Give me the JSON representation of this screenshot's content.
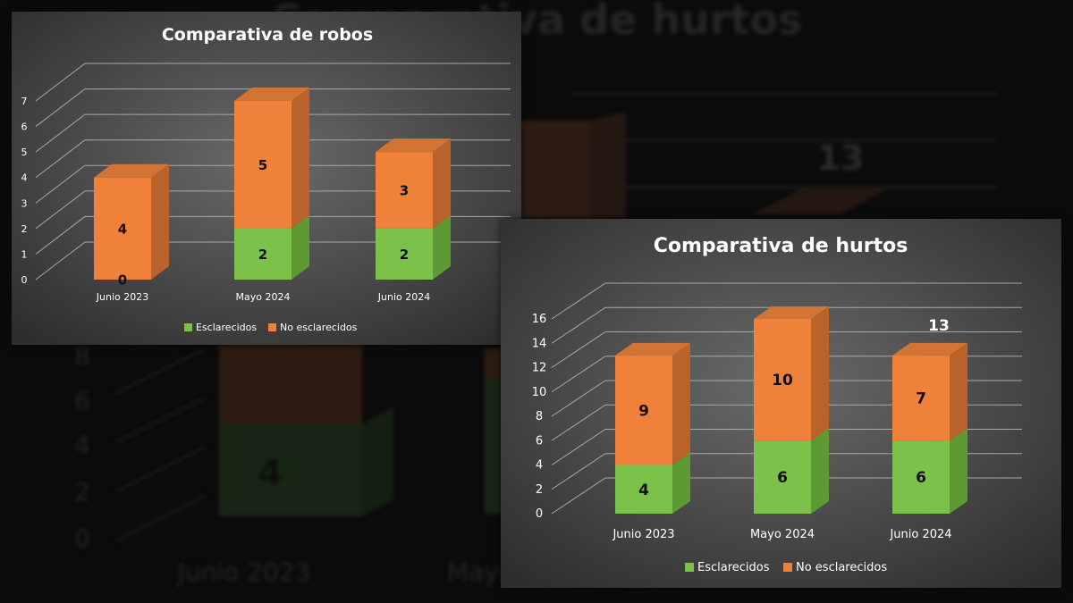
{
  "colors": {
    "esclarecidos_front": "#7CC24A",
    "esclarecidos_side": "#5E9A34",
    "no_esclarecidos_front": "#F0813A",
    "no_esclarecidos_side": "#B9622A",
    "no_esclarecidos_top": "#D27433",
    "panel_bg_center": "#6A6A6A",
    "panel_bg_edge": "#2E2E2E"
  },
  "background": {
    "title": "Comparativa de hurtos",
    "value_label": "13",
    "y_ticks": [
      "0",
      "2",
      "4",
      "6",
      "8"
    ],
    "category": "Junio 2023",
    "category_partial": "Mayo",
    "bar_label": "4"
  },
  "chart_data": [
    {
      "type": "bar",
      "stacked": true,
      "three_d": true,
      "title": "Comparativa de robos",
      "categories": [
        "Junio 2023",
        "Mayo 2024",
        "Junio 2024"
      ],
      "series": [
        {
          "name": "Esclarecidos",
          "values": [
            0,
            2,
            2
          ],
          "labels": [
            "0",
            "2",
            "2"
          ]
        },
        {
          "name": "No esclarecidos",
          "values": [
            4,
            5,
            3
          ],
          "labels": [
            "4",
            "5",
            "3"
          ]
        }
      ],
      "totals": [],
      "y_ticks": [
        "0",
        "1",
        "2",
        "3",
        "4",
        "5",
        "6",
        "7"
      ],
      "ylim": [
        0,
        7
      ],
      "grid": true,
      "legend_position": "bottom"
    },
    {
      "type": "bar",
      "stacked": true,
      "three_d": true,
      "title": "Comparativa de hurtos",
      "categories": [
        "Junio 2023",
        "Mayo 2024",
        "Junio 2024"
      ],
      "series": [
        {
          "name": "Esclarecidos",
          "values": [
            4,
            6,
            6
          ],
          "labels": [
            "4",
            "6",
            "6"
          ]
        },
        {
          "name": "No esclarecidos",
          "values": [
            9,
            10,
            7
          ],
          "labels": [
            "9",
            "10",
            "7"
          ]
        }
      ],
      "totals": [
        "",
        "",
        "13"
      ],
      "y_ticks": [
        "0",
        "2",
        "4",
        "6",
        "8",
        "10",
        "12",
        "14",
        "16"
      ],
      "ylim": [
        0,
        16
      ],
      "grid": true,
      "legend_position": "bottom"
    }
  ]
}
